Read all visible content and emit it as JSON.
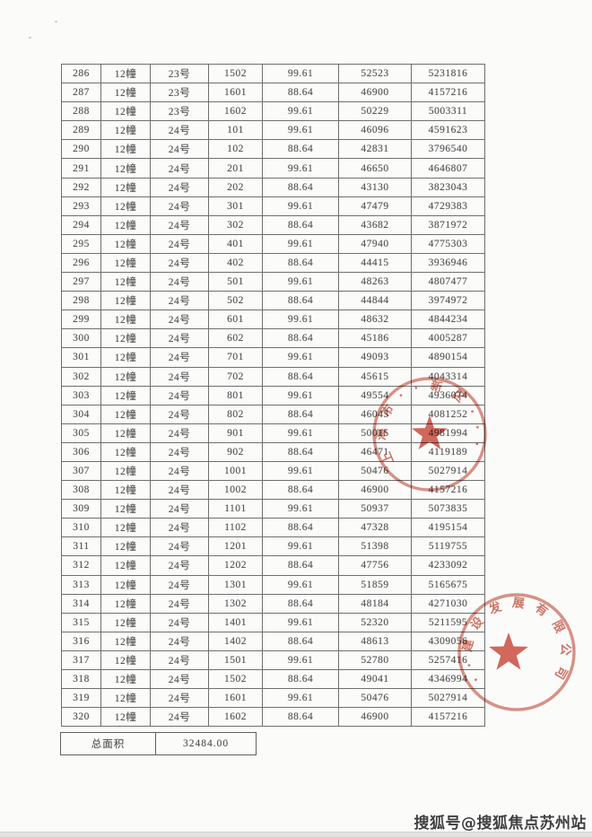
{
  "table": {
    "rows": [
      [
        "286",
        "12幢",
        "23号",
        "1502",
        "99.61",
        "52523",
        "5231816"
      ],
      [
        "287",
        "12幢",
        "23号",
        "1601",
        "88.64",
        "46900",
        "4157216"
      ],
      [
        "288",
        "12幢",
        "23号",
        "1602",
        "99.61",
        "50229",
        "5003311"
      ],
      [
        "289",
        "12幢",
        "24号",
        "101",
        "99.61",
        "46096",
        "4591623"
      ],
      [
        "290",
        "12幢",
        "24号",
        "102",
        "88.64",
        "42831",
        "3796540"
      ],
      [
        "291",
        "12幢",
        "24号",
        "201",
        "99.61",
        "46650",
        "4646807"
      ],
      [
        "292",
        "12幢",
        "24号",
        "202",
        "88.64",
        "43130",
        "3823043"
      ],
      [
        "293",
        "12幢",
        "24号",
        "301",
        "99.61",
        "47479",
        "4729383"
      ],
      [
        "294",
        "12幢",
        "24号",
        "302",
        "88.64",
        "43682",
        "3871972"
      ],
      [
        "295",
        "12幢",
        "24号",
        "401",
        "99.61",
        "47940",
        "4775303"
      ],
      [
        "296",
        "12幢",
        "24号",
        "402",
        "88.64",
        "44415",
        "3936946"
      ],
      [
        "297",
        "12幢",
        "24号",
        "501",
        "99.61",
        "48263",
        "4807477"
      ],
      [
        "298",
        "12幢",
        "24号",
        "502",
        "88.64",
        "44844",
        "3974972"
      ],
      [
        "299",
        "12幢",
        "24号",
        "601",
        "99.61",
        "48632",
        "4844234"
      ],
      [
        "300",
        "12幢",
        "24号",
        "602",
        "88.64",
        "45186",
        "4005287"
      ],
      [
        "301",
        "12幢",
        "24号",
        "701",
        "99.61",
        "49093",
        "4890154"
      ],
      [
        "302",
        "12幢",
        "24号",
        "702",
        "88.64",
        "45615",
        "4043314"
      ],
      [
        "303",
        "12幢",
        "24号",
        "801",
        "99.61",
        "49554",
        "4936074"
      ],
      [
        "304",
        "12幢",
        "24号",
        "802",
        "88.64",
        "46043",
        "4081252"
      ],
      [
        "305",
        "12幢",
        "24号",
        "901",
        "99.61",
        "50015",
        "4981994"
      ],
      [
        "306",
        "12幢",
        "24号",
        "902",
        "88.64",
        "46471",
        "4119189"
      ],
      [
        "307",
        "12幢",
        "24号",
        "1001",
        "99.61",
        "50476",
        "5027914"
      ],
      [
        "308",
        "12幢",
        "24号",
        "1002",
        "88.64",
        "46900",
        "4157216"
      ],
      [
        "309",
        "12幢",
        "24号",
        "1101",
        "99.61",
        "50937",
        "5073835"
      ],
      [
        "310",
        "12幢",
        "24号",
        "1102",
        "88.64",
        "47328",
        "4195154"
      ],
      [
        "311",
        "12幢",
        "24号",
        "1201",
        "99.61",
        "51398",
        "5119755"
      ],
      [
        "312",
        "12幢",
        "24号",
        "1202",
        "88.64",
        "47756",
        "4233092"
      ],
      [
        "313",
        "12幢",
        "24号",
        "1301",
        "99.61",
        "51859",
        "5165675"
      ],
      [
        "314",
        "12幢",
        "24号",
        "1302",
        "88.64",
        "48184",
        "4271030"
      ],
      [
        "315",
        "12幢",
        "24号",
        "1401",
        "99.61",
        "52320",
        "5211595"
      ],
      [
        "316",
        "12幢",
        "24号",
        "1402",
        "88.64",
        "48613",
        "4309056"
      ],
      [
        "317",
        "12幢",
        "24号",
        "1501",
        "99.61",
        "52780",
        "5257416"
      ],
      [
        "318",
        "12幢",
        "24号",
        "1502",
        "88.64",
        "49041",
        "4346994"
      ],
      [
        "319",
        "12幢",
        "24号",
        "1601",
        "99.61",
        "50476",
        "5027914"
      ],
      [
        "320",
        "12幢",
        "24号",
        "1602",
        "88.64",
        "46900",
        "4157216"
      ]
    ]
  },
  "summary": {
    "label": "总面积",
    "value": "32484.00"
  },
  "stamps": [
    {
      "kind": "round-official-seal-with-star",
      "visible_text": "上海市··新区···",
      "color": "#c4503e"
    },
    {
      "kind": "round-official-seal-with-star",
      "visible_text": "··建设发展有限公司",
      "color": "#c4503e"
    }
  ],
  "watermark": {
    "text": "搜狐号@搜狐焦点苏州站",
    "color": "#3f3f3f"
  }
}
